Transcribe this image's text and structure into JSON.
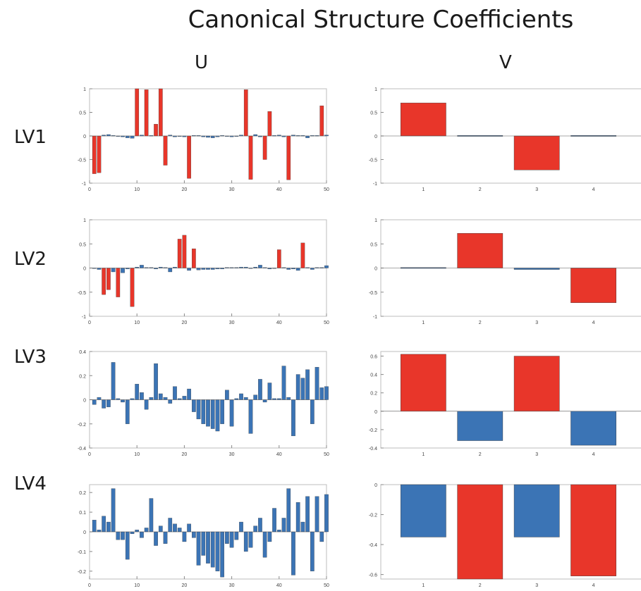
{
  "title": "Canonical Structure Coefficients",
  "columns": {
    "u": "U",
    "v": "V"
  },
  "rows": [
    "LV1",
    "LV2",
    "LV3",
    "LV4"
  ],
  "colors": {
    "positive": "#e8362a",
    "negative": "#3b74b5"
  },
  "chart_data": [
    {
      "type": "bar",
      "panel": "LV1-U",
      "x": [
        1,
        2,
        3,
        4,
        5,
        6,
        7,
        8,
        9,
        10,
        11,
        12,
        13,
        14,
        15,
        16,
        17,
        18,
        19,
        20,
        21,
        22,
        23,
        24,
        25,
        26,
        27,
        28,
        29,
        30,
        31,
        32,
        33,
        34,
        35,
        36,
        37,
        38,
        39,
        40,
        41,
        42,
        43,
        44,
        45,
        46,
        47,
        48,
        49,
        50
      ],
      "values": [
        -0.8,
        -0.78,
        0.02,
        0.03,
        0.01,
        -0.01,
        -0.02,
        -0.04,
        -0.05,
        1.0,
        0.02,
        0.98,
        0.01,
        0.25,
        1.0,
        -0.62,
        0.02,
        -0.02,
        -0.01,
        -0.02,
        -0.9,
        0.01,
        0.01,
        -0.02,
        -0.03,
        -0.04,
        -0.02,
        0.01,
        -0.01,
        -0.02,
        -0.01,
        0.02,
        0.98,
        -0.92,
        0.03,
        -0.02,
        -0.5,
        0.52,
        0.01,
        0.02,
        -0.02,
        -0.93,
        0.02,
        0.01,
        0.01,
        -0.04,
        0.01,
        0.01,
        0.64,
        0.02
      ],
      "ylim": [
        -1,
        1
      ],
      "yticks": [
        "-1",
        "-0.5",
        "0",
        "0.5",
        "1"
      ],
      "xticks": [
        "0",
        "10",
        "20",
        "30",
        "40",
        "50"
      ]
    },
    {
      "type": "bar",
      "panel": "LV1-V",
      "categories": [
        "1",
        "2",
        "3",
        "4"
      ],
      "values": [
        0.7,
        0.01,
        -0.72,
        0.01
      ],
      "ylim": [
        -1,
        1
      ],
      "yticks": [
        "-1",
        "-0.5",
        "0",
        "0.5",
        "1"
      ]
    },
    {
      "type": "bar",
      "panel": "LV2-U",
      "x": [
        1,
        2,
        3,
        4,
        5,
        6,
        7,
        8,
        9,
        10,
        11,
        12,
        13,
        14,
        15,
        16,
        17,
        18,
        19,
        20,
        21,
        22,
        23,
        24,
        25,
        26,
        27,
        28,
        29,
        30,
        31,
        32,
        33,
        34,
        35,
        36,
        37,
        38,
        39,
        40,
        41,
        42,
        43,
        44,
        45,
        46,
        47,
        48,
        49,
        50
      ],
      "values": [
        -0.01,
        -0.03,
        -0.55,
        -0.45,
        -0.08,
        -0.6,
        -0.1,
        -0.02,
        -0.8,
        0.02,
        0.06,
        0.01,
        0.01,
        -0.02,
        0.02,
        0.01,
        -0.08,
        0.02,
        0.6,
        0.68,
        -0.05,
        0.4,
        -0.04,
        -0.03,
        -0.03,
        -0.03,
        -0.02,
        -0.02,
        0.01,
        0.01,
        0.01,
        0.02,
        0.02,
        -0.01,
        0.02,
        0.06,
        0.01,
        -0.02,
        -0.01,
        0.38,
        0.01,
        -0.03,
        -0.02,
        -0.05,
        0.52,
        0.01,
        -0.03,
        0.01,
        0.01,
        0.05
      ],
      "ylim": [
        -1,
        1
      ],
      "yticks": [
        "-1",
        "-0.5",
        "0",
        "0.5",
        "1"
      ],
      "xticks": [
        "0",
        "10",
        "20",
        "30",
        "40",
        "50"
      ]
    },
    {
      "type": "bar",
      "panel": "LV2-V",
      "categories": [
        "1",
        "2",
        "3",
        "4"
      ],
      "values": [
        0.01,
        0.72,
        -0.03,
        -0.72
      ],
      "ylim": [
        -1,
        1
      ],
      "yticks": [
        "-1",
        "-0.5",
        "0",
        "0.5",
        "1"
      ]
    },
    {
      "type": "bar",
      "panel": "LV3-U",
      "x": [
        1,
        2,
        3,
        4,
        5,
        6,
        7,
        8,
        9,
        10,
        11,
        12,
        13,
        14,
        15,
        16,
        17,
        18,
        19,
        20,
        21,
        22,
        23,
        24,
        25,
        26,
        27,
        28,
        29,
        30,
        31,
        32,
        33,
        34,
        35,
        36,
        37,
        38,
        39,
        40,
        41,
        42,
        43,
        44,
        45,
        46,
        47,
        48,
        49,
        50
      ],
      "values": [
        -0.04,
        0.02,
        -0.07,
        -0.06,
        0.31,
        0.01,
        -0.02,
        -0.2,
        0.01,
        0.13,
        0.06,
        -0.08,
        0.02,
        0.3,
        0.05,
        0.02,
        -0.03,
        0.11,
        0.01,
        0.03,
        0.09,
        -0.1,
        -0.16,
        -0.2,
        -0.22,
        -0.24,
        -0.26,
        -0.2,
        0.08,
        -0.22,
        0.01,
        0.05,
        0.02,
        -0.28,
        0.04,
        0.17,
        -0.02,
        0.14,
        0.01,
        0.01,
        0.28,
        0.02,
        -0.3,
        0.21,
        0.18,
        0.25,
        -0.2,
        0.27,
        0.1,
        0.11
      ],
      "ylim": [
        -0.4,
        0.4
      ],
      "yticks": [
        "-0.4",
        "-0.2",
        "0",
        "0.2",
        "0.4"
      ],
      "xticks": [
        "0",
        "10",
        "20",
        "30",
        "40",
        "50"
      ]
    },
    {
      "type": "bar",
      "panel": "LV3-V",
      "categories": [
        "1",
        "2",
        "3",
        "4"
      ],
      "values": [
        0.62,
        -0.32,
        0.6,
        -0.37
      ],
      "ylim": [
        -0.4,
        0.65
      ],
      "yticks": [
        "-0.4",
        "-0.2",
        "0",
        "0.2",
        "0.4",
        "0.6"
      ]
    },
    {
      "type": "bar",
      "panel": "LV4-U",
      "x": [
        1,
        2,
        3,
        4,
        5,
        6,
        7,
        8,
        9,
        10,
        11,
        12,
        13,
        14,
        15,
        16,
        17,
        18,
        19,
        20,
        21,
        22,
        23,
        24,
        25,
        26,
        27,
        28,
        29,
        30,
        31,
        32,
        33,
        34,
        35,
        36,
        37,
        38,
        39,
        40,
        41,
        42,
        43,
        44,
        45,
        46,
        47,
        48,
        49,
        50
      ],
      "values": [
        0.06,
        0.01,
        0.08,
        0.05,
        0.22,
        -0.04,
        -0.04,
        -0.14,
        -0.01,
        0.01,
        -0.03,
        0.02,
        0.17,
        -0.07,
        0.03,
        -0.06,
        0.07,
        0.04,
        0.02,
        -0.05,
        0.04,
        -0.03,
        -0.17,
        -0.12,
        -0.16,
        -0.18,
        -0.2,
        -0.23,
        -0.06,
        -0.08,
        -0.04,
        0.05,
        -0.1,
        -0.08,
        0.03,
        0.07,
        -0.13,
        -0.05,
        0.12,
        0.01,
        0.07,
        0.22,
        -0.22,
        0.15,
        0.05,
        0.18,
        -0.2,
        0.18,
        -0.05,
        0.19
      ],
      "ylim": [
        -0.24,
        0.24
      ],
      "yticks": [
        "-0.2",
        "-0.1",
        "0",
        "0.1",
        "0.2"
      ],
      "xticks": [
        "0",
        "10",
        "20",
        "30",
        "40",
        "50"
      ]
    },
    {
      "type": "bar",
      "panel": "LV4-V",
      "categories": [
        "1",
        "2",
        "3",
        "4"
      ],
      "values": [
        -0.35,
        -0.63,
        -0.35,
        -0.61
      ],
      "ylim": [
        -0.63,
        0.0
      ],
      "yticks": [
        "-0.6",
        "-0.4",
        "-0.2",
        "0"
      ]
    }
  ]
}
